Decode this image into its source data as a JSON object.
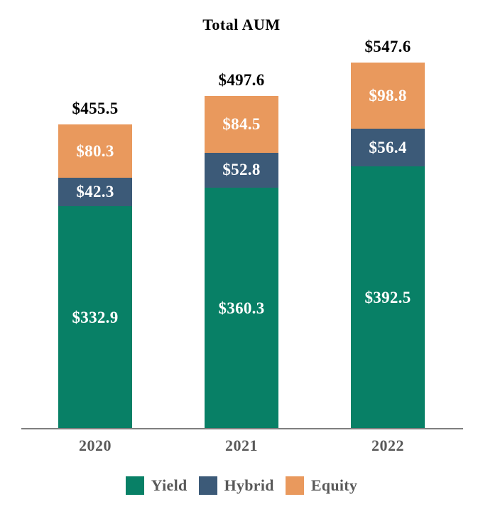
{
  "chart_data": {
    "type": "bar",
    "stacked": true,
    "title": "Total AUM",
    "value_prefix": "$",
    "categories": [
      "2020",
      "2021",
      "2022"
    ],
    "series": [
      {
        "name": "Yield",
        "color": "#088066",
        "values": [
          332.9,
          360.3,
          392.5
        ]
      },
      {
        "name": "Hybrid",
        "color": "#3C5A78",
        "values": [
          42.3,
          52.8,
          56.4
        ]
      },
      {
        "name": "Equity",
        "color": "#E9995D",
        "values": [
          80.3,
          84.5,
          98.8
        ]
      }
    ],
    "totals": [
      455.5,
      497.6,
      547.6
    ],
    "total_labels": [
      "$455.5",
      "$497.6",
      "$547.6"
    ],
    "legend_position": "bottom",
    "legend": [
      "Yield",
      "Hybrid",
      "Equity"
    ],
    "grid": false,
    "ylim": [
      0,
      580
    ]
  },
  "colors": {
    "axis_line": "#7F7F7F",
    "category_label": "#595959",
    "legend_label": "#595959",
    "total_label": "#000000",
    "segment_label": "#FFFFFF",
    "background": "#FFFFFF"
  }
}
